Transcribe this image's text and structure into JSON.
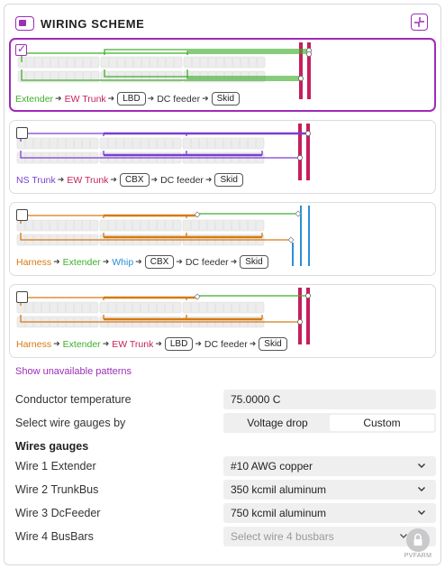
{
  "header": {
    "title": "WIRING SCHEME"
  },
  "patterns": [
    {
      "checked": true,
      "legend": [
        {
          "text": "Extender",
          "color": "#3fae2a",
          "kind": "link"
        },
        {
          "text": "EW Trunk",
          "color": "#c51f5d",
          "kind": "link"
        },
        {
          "text": "LBD",
          "kind": "tag"
        },
        {
          "text": "DC feeder",
          "kind": "plain"
        },
        {
          "text": "Skid",
          "kind": "tag"
        }
      ]
    },
    {
      "checked": false,
      "legend": [
        {
          "text": "NS Trunk",
          "color": "#7a3fd0",
          "kind": "link"
        },
        {
          "text": "EW Trunk",
          "color": "#c51f5d",
          "kind": "link"
        },
        {
          "text": "CBX",
          "kind": "tag"
        },
        {
          "text": "DC feeder",
          "kind": "plain"
        },
        {
          "text": "Skid",
          "kind": "tag"
        }
      ]
    },
    {
      "checked": false,
      "legend": [
        {
          "text": "Harness",
          "color": "#d57a10",
          "kind": "link"
        },
        {
          "text": "Extender",
          "color": "#3fae2a",
          "kind": "link"
        },
        {
          "text": "Whip",
          "color": "#2a8fd6",
          "kind": "link"
        },
        {
          "text": "CBX",
          "kind": "tag"
        },
        {
          "text": "DC feeder",
          "kind": "plain"
        },
        {
          "text": "Skid",
          "kind": "tag"
        }
      ]
    },
    {
      "checked": false,
      "legend": [
        {
          "text": "Harness",
          "color": "#d57a10",
          "kind": "link"
        },
        {
          "text": "Extender",
          "color": "#3fae2a",
          "kind": "link"
        },
        {
          "text": "EW Trunk",
          "color": "#c51f5d",
          "kind": "link"
        },
        {
          "text": "LBD",
          "kind": "tag"
        },
        {
          "text": "DC feeder",
          "kind": "plain"
        },
        {
          "text": "Skid",
          "kind": "tag"
        }
      ]
    }
  ],
  "show_unavailable": "Show unavailable patterns",
  "settings": {
    "conductor_temp_label": "Conductor temperature",
    "conductor_temp_value": "75.0000 C",
    "gauge_by_label": "Select wire gauges by",
    "gauge_by_options": [
      "Voltage drop",
      "Custom"
    ],
    "gauge_by_selected": "Custom",
    "wires_title": "Wires gauges",
    "wires": [
      {
        "label": "Wire 1 Extender",
        "value": "#10 AWG copper"
      },
      {
        "label": "Wire 2 TrunkBus",
        "value": "350 kcmil aluminum"
      },
      {
        "label": "Wire 3 DcFeeder",
        "value": "750 kcmil aluminum"
      },
      {
        "label": "Wire 4 BusBars",
        "placeholder": "Select wire 4 busbars"
      }
    ]
  },
  "brand": {
    "name": "PVFARM"
  },
  "colors": {
    "accent": "#9b2fb8",
    "extender": "#3fae2a",
    "ew_trunk": "#c51f5d",
    "ns_trunk": "#7a3fd0",
    "harness": "#d57a10",
    "whip": "#2a8fd6"
  }
}
